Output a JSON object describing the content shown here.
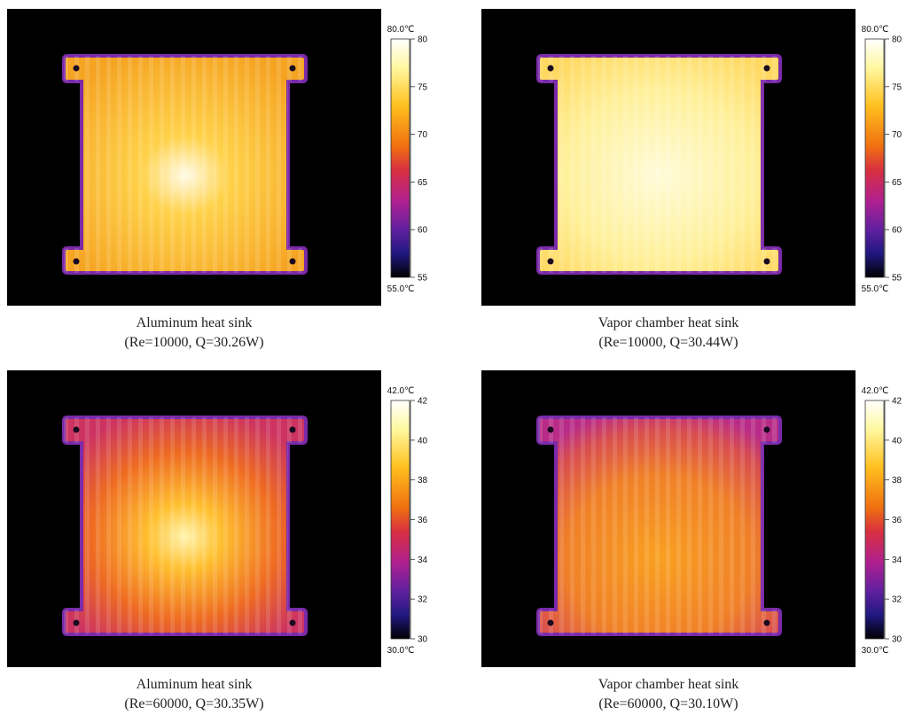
{
  "panels": [
    {
      "scale_top": "80.0℃",
      "scale_bottom": "55.0℃",
      "ticks": [
        80,
        75,
        70,
        65,
        60,
        55
      ],
      "caption": [
        "Aluminum heat sink",
        "(Re=10000, Q=30.26W)"
      ]
    },
    {
      "scale_top": "80.0℃",
      "scale_bottom": "55.0℃",
      "ticks": [
        80,
        75,
        70,
        65,
        60,
        55
      ],
      "caption": [
        "Vapor chamber heat sink",
        "(Re=10000, Q=30.44W)"
      ]
    },
    {
      "scale_top": "42.0℃",
      "scale_bottom": "30.0℃",
      "ticks": [
        42,
        40,
        38,
        36,
        34,
        32,
        30
      ],
      "caption": [
        "Aluminum heat sink",
        "(Re=60000, Q=30.35W)"
      ]
    },
    {
      "scale_top": "42.0℃",
      "scale_bottom": "30.0℃",
      "ticks": [
        42,
        40,
        38,
        36,
        34,
        32,
        30
      ],
      "caption": [
        "Vapor chamber heat sink",
        "(Re=60000, Q=30.10W)"
      ]
    }
  ]
}
